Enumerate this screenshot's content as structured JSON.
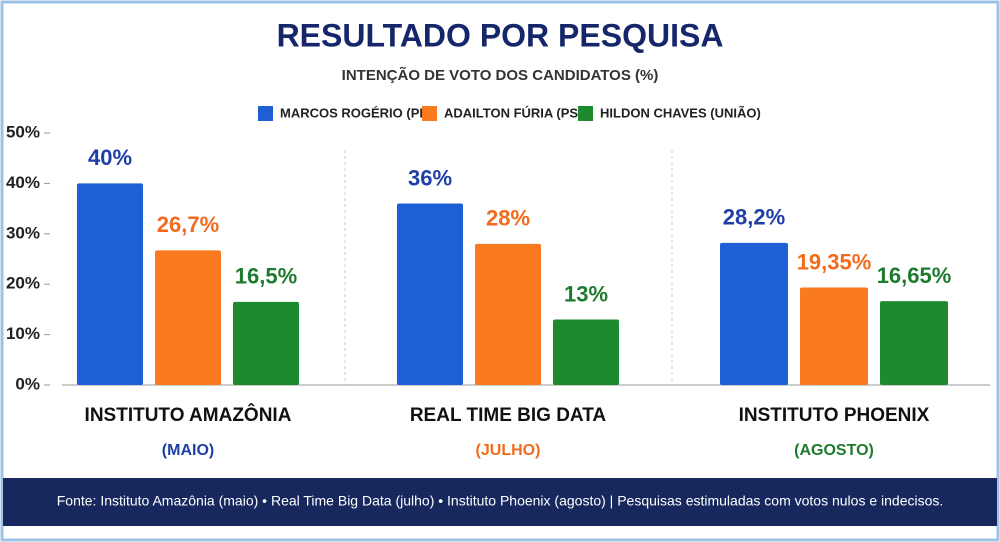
{
  "chart_data": {
    "type": "bar",
    "title": "RESULTADO POR PESQUISA",
    "subtitle": "INTENÇÃO DE VOTO DOS CANDIDATOS (%)",
    "categories": [
      "INSTITUTO AMAZÔNIA",
      "REAL TIME BIG DATA",
      "INSTITUTO PHOENIX"
    ],
    "category_notes": [
      "(MAIO)",
      "(JULHO)",
      "(AGOSTO)"
    ],
    "category_note_colors": [
      "#1f3fa8",
      "#f26b1d",
      "#1e7a2e"
    ],
    "series": [
      {
        "name": "MARCOS ROGÉRIO (PL)",
        "color": "#1f5fd6",
        "values": [
          40,
          36,
          28.2
        ],
        "value_labels": [
          "40%",
          "36%",
          "28,2%"
        ]
      },
      {
        "name": "ADAILTON FÚRIA (PSD)",
        "color": "#f97a1f",
        "values": [
          26.7,
          28,
          19.35
        ],
        "value_labels": [
          "26,7%",
          "28%",
          "19,35%"
        ]
      },
      {
        "name": "HILDON CHAVES (UNIÃO)",
        "color": "#1d8a2e",
        "values": [
          16.5,
          13,
          16.65
        ],
        "value_labels": [
          "16,5%",
          "13%",
          "16,65%"
        ]
      }
    ],
    "ylim": [
      0,
      50
    ],
    "yticks": [
      {
        "value": 0,
        "label": "0%"
      },
      {
        "value": 10,
        "label": "10%"
      },
      {
        "value": 20,
        "label": "20%"
      },
      {
        "value": 30,
        "label": "30%"
      },
      {
        "value": 40,
        "label": "40%"
      },
      {
        "value": 50,
        "label": "50%"
      }
    ],
    "grid": false,
    "footer": "Fonte: Instituto Amazônia (maio)  •  Real Time Big Data (julho)  •  Instituto Phoenix (agosto) | Pesquisas estimuladas com votos nulos e indecisos."
  }
}
